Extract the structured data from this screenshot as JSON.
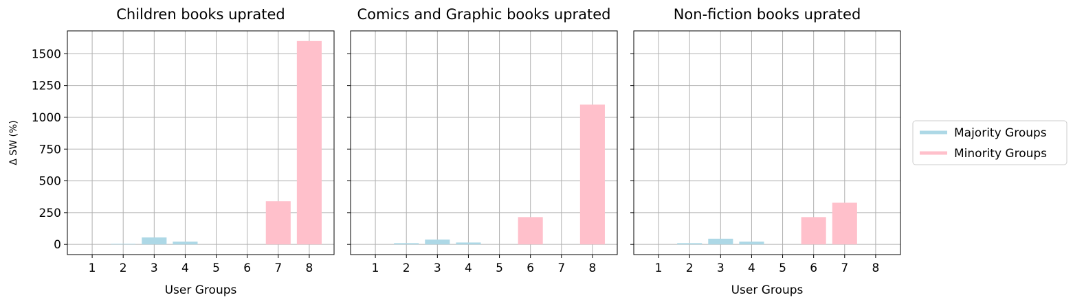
{
  "colors": {
    "majority": "#add8e6",
    "minority": "#ffc0cb",
    "grid": "#b0b0b0",
    "frame": "#000000"
  },
  "ylabel": "Δ SW (%)",
  "legend": [
    {
      "name": "Majority Groups",
      "color": "#add8e6"
    },
    {
      "name": "Minority Groups",
      "color": "#ffc0cb"
    }
  ],
  "chart_data": [
    {
      "type": "bar",
      "title": "Children books uprated",
      "xlabel": "User Groups",
      "ylabel": "Δ SW (%)",
      "categories": [
        "1",
        "2",
        "3",
        "4",
        "5",
        "6",
        "7",
        "8"
      ],
      "ylim": [
        -80,
        1680
      ],
      "yticks": [
        0,
        250,
        500,
        750,
        1000,
        1250,
        1500
      ],
      "grid": true,
      "legend_position": "right",
      "series": [
        {
          "name": "Majority Groups",
          "values": [
            0,
            5,
            55,
            22,
            0,
            null,
            null,
            null
          ]
        },
        {
          "name": "Minority Groups",
          "values": [
            null,
            null,
            null,
            null,
            null,
            0,
            340,
            1600
          ]
        }
      ]
    },
    {
      "type": "bar",
      "title": "Comics and Graphic books uprated",
      "xlabel": "",
      "ylabel": "",
      "categories": [
        "1",
        "2",
        "3",
        "4",
        "5",
        "6",
        "7",
        "8"
      ],
      "ylim": [
        -80,
        1680
      ],
      "yticks": [
        0,
        250,
        500,
        750,
        1000,
        1250,
        1500
      ],
      "grid": true,
      "series": [
        {
          "name": "Majority Groups",
          "values": [
            0,
            10,
            38,
            15,
            0,
            null,
            null,
            null
          ]
        },
        {
          "name": "Minority Groups",
          "values": [
            null,
            null,
            null,
            null,
            null,
            215,
            0,
            1100
          ]
        }
      ]
    },
    {
      "type": "bar",
      "title": "Non-fiction books uprated",
      "xlabel": "User Groups",
      "ylabel": "",
      "categories": [
        "1",
        "2",
        "3",
        "4",
        "5",
        "6",
        "7",
        "8"
      ],
      "ylim": [
        -80,
        1680
      ],
      "yticks": [
        0,
        250,
        500,
        750,
        1000,
        1250,
        1500
      ],
      "grid": true,
      "series": [
        {
          "name": "Majority Groups",
          "values": [
            0,
            10,
            45,
            22,
            0,
            null,
            null,
            null
          ]
        },
        {
          "name": "Minority Groups",
          "values": [
            null,
            null,
            null,
            null,
            null,
            215,
            328,
            0
          ]
        }
      ]
    }
  ]
}
